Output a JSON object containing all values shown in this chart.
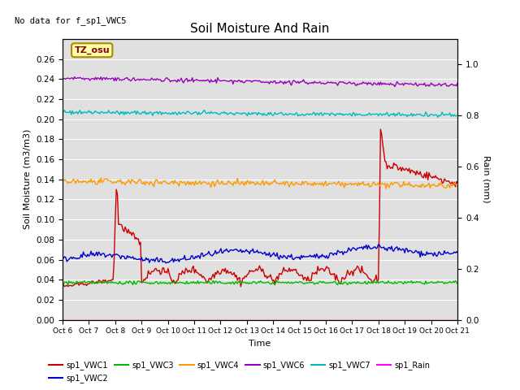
{
  "title": "Soil Moisture And Rain",
  "no_data_text": "No data for f_sp1_VWC5",
  "station_label": "TZ_osu",
  "xlabel": "Time",
  "ylabel_left": "Soil Moisture (m3/m3)",
  "ylabel_right": "Rain (mm)",
  "ylim_left": [
    0.0,
    0.28
  ],
  "ylim_right": [
    0.0,
    1.1
  ],
  "background_color": "#e0e0e0",
  "series": {
    "sp1_VWC1": {
      "color": "#cc0000",
      "lw": 1.0
    },
    "sp1_VWC2": {
      "color": "#0000cc",
      "lw": 1.0
    },
    "sp1_VWC3": {
      "color": "#00bb00",
      "lw": 1.0
    },
    "sp1_VWC4": {
      "color": "#ff9900",
      "lw": 1.0
    },
    "sp1_VWC6": {
      "color": "#9900bb",
      "lw": 1.0
    },
    "sp1_VWC7": {
      "color": "#00bbbb",
      "lw": 1.0
    },
    "sp1_Rain": {
      "color": "#ff00ff",
      "lw": 1.0
    }
  },
  "x_ticks_labels": [
    "Oct 6",
    "Oct 7",
    "Oct 8",
    "Oct 9",
    "Oct 10",
    "Oct 11",
    "Oct 12",
    "Oct 13",
    "Oct 14",
    "Oct 15",
    "Oct 16",
    "Oct 17",
    "Oct 18",
    "Oct 19",
    "Oct 20",
    "Oct 21"
  ],
  "y_left_ticks": [
    0.0,
    0.02,
    0.04,
    0.06,
    0.08,
    0.1,
    0.12,
    0.14,
    0.16,
    0.18,
    0.2,
    0.22,
    0.24,
    0.26
  ],
  "y_right_ticks": [
    0.0,
    0.2,
    0.4,
    0.6,
    0.8,
    1.0
  ],
  "figsize": [
    6.4,
    4.8
  ],
  "dpi": 100
}
